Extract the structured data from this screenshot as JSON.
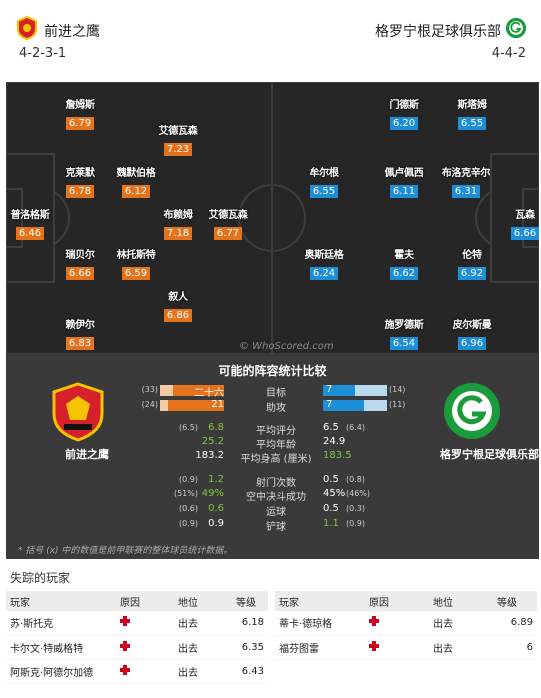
{
  "header": {
    "home_name": "前进之鹰",
    "home_formation": "4-2-3-1",
    "away_name": "格罗宁根足球俱乐部",
    "away_formation": "4-4-2"
  },
  "pitch": {
    "watermark": "© WhoScored.com",
    "home_players": [
      {
        "name": "詹姆斯",
        "rating": "6.79"
      },
      {
        "name": "艾德瓦森",
        "rating": "7.23"
      },
      {
        "name": "克莱默",
        "rating": "6.78"
      },
      {
        "name": "魏默伯格",
        "rating": "6.12"
      },
      {
        "name": "普洛格斯",
        "rating": "6.46"
      },
      {
        "name": "布赖姆",
        "rating": "7.18"
      },
      {
        "name": "艾德瓦森",
        "rating": "6.77"
      },
      {
        "name": "瑞贝尔",
        "rating": "6.66"
      },
      {
        "name": "林托斯特",
        "rating": "6.59"
      },
      {
        "name": "叙人",
        "rating": "6.86"
      },
      {
        "name": "赖伊尔",
        "rating": "6.83"
      }
    ],
    "away_players": [
      {
        "name": "门德斯",
        "rating": "6.20"
      },
      {
        "name": "斯塔姆",
        "rating": "6.55"
      },
      {
        "name": "牟尔根",
        "rating": "6.55"
      },
      {
        "name": "佩卢佩西",
        "rating": "6.11"
      },
      {
        "name": "布洛克辛尔",
        "rating": "6.31"
      },
      {
        "name": "瓦森",
        "rating": "6.66"
      },
      {
        "name": "奥斯廷格",
        "rating": "6.24"
      },
      {
        "name": "霍夫",
        "rating": "6.62"
      },
      {
        "name": "伦特",
        "rating": "6.92"
      },
      {
        "name": "施罗德斯",
        "rating": "6.54"
      },
      {
        "name": "皮尔斯曼",
        "rating": "6.96"
      }
    ]
  },
  "comparison": {
    "title": "可能的阵容统计比较",
    "home_team": "前进之鹰",
    "away_team": "格罗宁根足球俱乐部",
    "bar_rows": [
      {
        "label": "目标",
        "home_sub": "(33)",
        "home_val": "二十六",
        "home_frac": 0.79,
        "away_sub": "(14)",
        "away_val": "7",
        "away_frac": 0.5
      },
      {
        "label": "助攻",
        "home_sub": "(24)",
        "home_val": "21",
        "home_frac": 0.88,
        "away_sub": "(11)",
        "away_val": "7",
        "away_frac": 0.64
      }
    ],
    "rows": [
      {
        "label": "平均评分",
        "home_sub": "(6.5)",
        "home_val": "6.8",
        "home_green": true,
        "away_sub": "(6.4)",
        "away_val": "6.5",
        "away_green": false
      },
      {
        "label": "平均年龄",
        "home_sub": "",
        "home_val": "25.2",
        "home_green": true,
        "away_sub": "",
        "away_val": "24.9",
        "away_green": false
      },
      {
        "label": "平均身高 (厘米)",
        "home_sub": "",
        "home_val": "183.2",
        "home_green": false,
        "away_sub": "",
        "away_val": "183.5",
        "away_green": true
      },
      {
        "label": "射门次数",
        "home_sub": "(0.9)",
        "home_val": "1.2",
        "home_green": true,
        "away_sub": "(0.8)",
        "away_val": "0.5",
        "away_green": false
      },
      {
        "label": "空中决斗成功",
        "home_sub": "(51%)",
        "home_val": "49%",
        "home_green": true,
        "away_sub": "(46%)",
        "away_val": "45%",
        "away_green": false
      },
      {
        "label": "运球",
        "home_sub": "(0.6)",
        "home_val": "0.6",
        "home_green": true,
        "away_sub": "(0.3)",
        "away_val": "0.5",
        "away_green": false
      },
      {
        "label": "铲球",
        "home_sub": "(0.9)",
        "home_val": "0.9",
        "home_green": false,
        "away_sub": "(0.9)",
        "away_val": "1.1",
        "away_green": true
      }
    ],
    "note": "* 括号 (x) 中的数值是前甲联赛的整体球员统计数据。"
  },
  "missing": {
    "title": "失踪的玩家",
    "headers": {
      "player": "玩家",
      "reason": "原因",
      "status": "地位",
      "rating": "等级"
    },
    "home_rows": [
      {
        "player": "苏·斯托克",
        "status": "出去",
        "rating": "6.18"
      },
      {
        "player": "卡尔文·特威格特",
        "status": "出去",
        "rating": "6.35"
      },
      {
        "player": "阿斯克·阿德尔加德",
        "status": "出去",
        "rating": "6.43"
      }
    ],
    "away_rows": [
      {
        "player": "蒂卡·德琼格",
        "status": "出去",
        "rating": "6.89"
      },
      {
        "player": "福芬图雷",
        "status": "出去",
        "rating": "6"
      }
    ]
  },
  "colors": {
    "home": "#e5731b",
    "away": "#1c8fd8",
    "better": "#7ec83c"
  }
}
